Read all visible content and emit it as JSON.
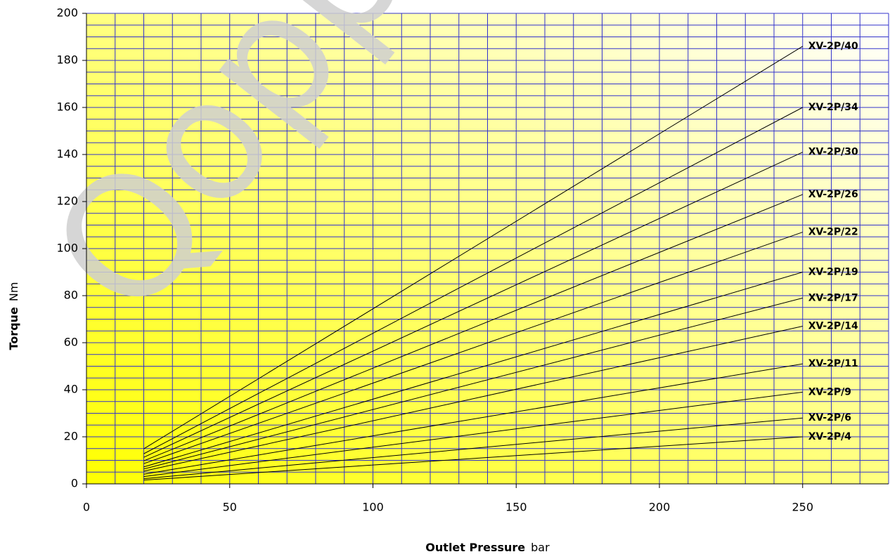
{
  "chart_data": {
    "type": "line",
    "x_label": {
      "text": "Outlet Pressure",
      "unit": "bar"
    },
    "y_label": {
      "text": "Torque",
      "unit": "Nm"
    },
    "watermark": "Qopp",
    "x": [
      20,
      250
    ],
    "series": [
      {
        "name": "XV-2P/40",
        "color": "#000000",
        "values": [
          14.9,
          186
        ]
      },
      {
        "name": "XV-2P/34",
        "color": "#000000",
        "values": [
          12.8,
          160
        ]
      },
      {
        "name": "XV-2P/30",
        "color": "#000000",
        "values": [
          11.3,
          141
        ]
      },
      {
        "name": "XV-2P/26",
        "color": "#000000",
        "values": [
          9.8,
          123
        ]
      },
      {
        "name": "XV-2P/22",
        "color": "#000000",
        "values": [
          8.6,
          107
        ]
      },
      {
        "name": "XV-2P/19",
        "color": "#000000",
        "values": [
          7.2,
          90
        ]
      },
      {
        "name": "XV-2P/17",
        "color": "#000000",
        "values": [
          6.3,
          79
        ]
      },
      {
        "name": "XV-2P/14",
        "color": "#000000",
        "values": [
          5.4,
          67
        ]
      },
      {
        "name": "XV-2P/11",
        "color": "#000000",
        "values": [
          4.1,
          51
        ]
      },
      {
        "name": "XV-2P/9",
        "color": "#000000",
        "values": [
          3.1,
          39
        ]
      },
      {
        "name": "XV-2P/6",
        "color": "#000000",
        "values": [
          2.2,
          28
        ]
      },
      {
        "name": "XV-2P/4",
        "color": "#000000",
        "values": [
          1.6,
          20
        ]
      }
    ],
    "xlim": [
      0,
      280
    ],
    "xticks": [
      0,
      50,
      100,
      150,
      200,
      250
    ],
    "ylim": [
      0,
      200
    ],
    "yticks": [
      0,
      20,
      40,
      60,
      80,
      100,
      120,
      140,
      160,
      180,
      200
    ],
    "xgridlines": [
      0,
      10,
      20,
      30,
      40,
      50,
      60,
      70,
      80,
      90,
      100,
      110,
      120,
      130,
      140,
      150,
      160,
      170,
      180,
      190,
      200,
      210,
      220,
      230,
      240,
      250,
      260,
      270,
      280
    ],
    "ygridlines": [
      0,
      5,
      10,
      15,
      20,
      25,
      30,
      35,
      40,
      45,
      50,
      55,
      60,
      65,
      70,
      75,
      80,
      85,
      90,
      95,
      100,
      105,
      110,
      115,
      120,
      125,
      130,
      135,
      140,
      145,
      150,
      155,
      160,
      165,
      170,
      175,
      180,
      185,
      190,
      195,
      200
    ],
    "grid_color": "#3333cc",
    "grid": true
  }
}
